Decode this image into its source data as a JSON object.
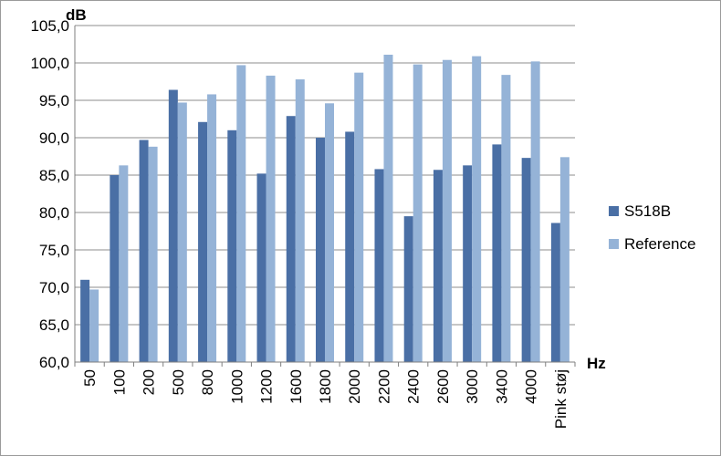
{
  "chart_data": {
    "type": "bar",
    "categories": [
      "50",
      "100",
      "200",
      "500",
      "800",
      "1000",
      "1200",
      "1600",
      "1800",
      "2000",
      "2200",
      "2400",
      "2600",
      "3000",
      "3400",
      "4000",
      "Pink støj"
    ],
    "series": [
      {
        "name": "S518B",
        "color": "#4a6fa5",
        "values": [
          71.0,
          85.0,
          89.7,
          96.4,
          92.1,
          91.0,
          85.2,
          92.9,
          90.0,
          90.8,
          85.8,
          79.5,
          85.7,
          86.3,
          89.1,
          87.3,
          78.6
        ]
      },
      {
        "name": "Reference",
        "color": "#95b3d7",
        "values": [
          69.7,
          86.3,
          88.8,
          94.7,
          95.8,
          99.7,
          98.3,
          97.8,
          94.6,
          98.7,
          101.1,
          99.8,
          100.4,
          100.9,
          98.4,
          100.2,
          87.4
        ]
      }
    ],
    "title": "",
    "xlabel": "Hz",
    "ylabel": "dB",
    "ylim": [
      60,
      105
    ],
    "ytick_step": 5,
    "ytick_labels": [
      "60,0",
      "65,0",
      "70,0",
      "75,0",
      "80,0",
      "85,0",
      "90,0",
      "95,0",
      "100,0",
      "105,0"
    ],
    "grid": true,
    "legend_position": "right"
  }
}
